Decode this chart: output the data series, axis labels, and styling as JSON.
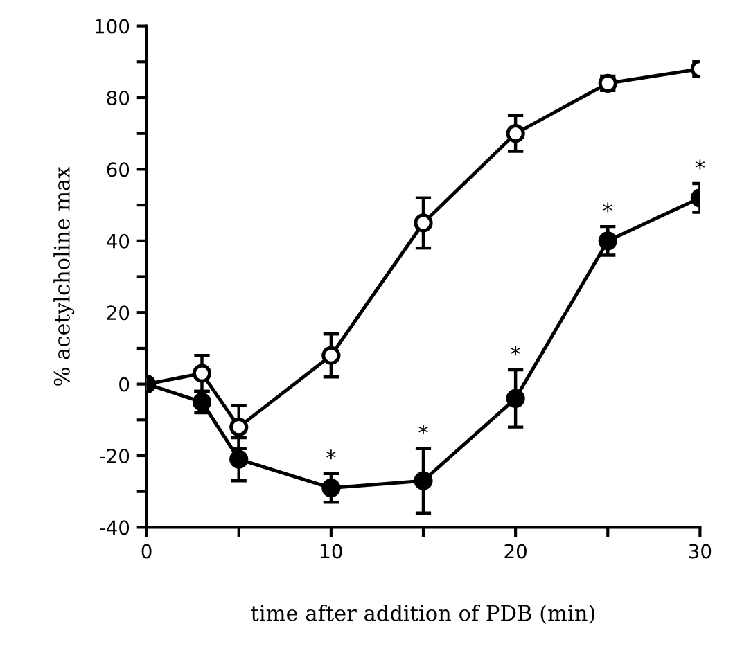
{
  "chart_data": {
    "type": "line",
    "xlabel": "time after addition of PDB (min)",
    "ylabel": "% acetylcholine max",
    "xlim": [
      0,
      30
    ],
    "ylim": [
      -40,
      100
    ],
    "xticks": [
      0,
      {
        "value": 5,
        "label": null
      },
      10,
      {
        "value": 15,
        "label": null
      },
      20,
      {
        "value": 25,
        "label": null
      },
      30
    ],
    "yticks": [
      -40,
      {
        "value": -30,
        "label": null
      },
      -20,
      {
        "value": -10,
        "label": null
      },
      0,
      {
        "value": 10,
        "label": null
      },
      20,
      {
        "value": 30,
        "label": null
      },
      40,
      {
        "value": 50,
        "label": null
      },
      60,
      {
        "value": 70,
        "label": null
      },
      80,
      {
        "value": 90,
        "label": null
      },
      100
    ],
    "x": [
      0,
      3,
      5,
      10,
      15,
      20,
      25,
      30
    ],
    "marker": "circle",
    "line_style": "solid",
    "grid": false,
    "series": [
      {
        "color": "#ffffff",
        "values": [
          0,
          3,
          -12,
          8,
          45,
          70,
          84,
          88
        ],
        "errors": [
          null,
          5,
          6,
          6,
          7,
          5,
          2,
          2
        ]
      },
      {
        "color": "#000000",
        "values": [
          0,
          -5,
          -21,
          -29,
          -27,
          -4,
          40,
          52
        ],
        "errors": [
          null,
          3,
          6,
          4,
          9,
          8,
          4,
          4
        ]
      }
    ],
    "annotations": [
      {
        "text": "*",
        "x": 10,
        "y": -25
      },
      {
        "text": "*",
        "x": 15,
        "y": -18
      },
      {
        "text": "*",
        "x": 20,
        "y": 4
      },
      {
        "text": "*",
        "x": 25,
        "y": 44
      },
      {
        "text": "*",
        "x": 30,
        "y": 56
      }
    ]
  }
}
